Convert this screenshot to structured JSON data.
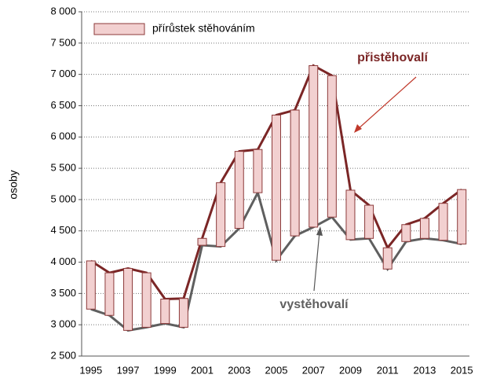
{
  "chart_data": {
    "type": "line",
    "y_label": "osoby",
    "bar_legend": "přírůstek stěhováním",
    "bar_color": "#f2d0d0",
    "categories": [
      "1995",
      null,
      "1997",
      null,
      "1999",
      null,
      "2001",
      null,
      "2003",
      null,
      "2005",
      null,
      "2007",
      null,
      "2009",
      null,
      "2011",
      null,
      "2013",
      null,
      "2015"
    ],
    "series": [
      {
        "name": "přistěhovalí",
        "color": "#7b2626",
        "values": [
          4020,
          3830,
          3900,
          3830,
          3410,
          3420,
          4380,
          5270,
          5770,
          5800,
          6350,
          6430,
          7140,
          6980,
          5150,
          4910,
          4230,
          4600,
          4700,
          4940,
          5160
        ]
      },
      {
        "name": "vystěhovalí",
        "color": "#5f5f5f",
        "values": [
          3250,
          3150,
          2910,
          2960,
          3020,
          2960,
          4270,
          4250,
          4540,
          5110,
          4030,
          4420,
          4560,
          4720,
          4360,
          4380,
          3890,
          4330,
          4380,
          4350,
          4290
        ]
      }
    ],
    "ylim": [
      2500,
      8000
    ],
    "yticks": [
      {
        "value": 2500,
        "label": "2 500"
      },
      {
        "value": 3000,
        "label": "3 000"
      },
      {
        "value": 3500,
        "label": "3 500"
      },
      {
        "value": 4000,
        "label": "4 000"
      },
      {
        "value": 4500,
        "label": "4 500"
      },
      {
        "value": 5000,
        "label": "5 000"
      },
      {
        "value": 5500,
        "label": "5 500"
      },
      {
        "value": 6000,
        "label": "6 000"
      },
      {
        "value": 6500,
        "label": "6 500"
      },
      {
        "value": 7000,
        "label": "7 000"
      },
      {
        "value": 7500,
        "label": "7 500"
      },
      {
        "value": 8000,
        "label": "8 000"
      }
    ],
    "grid": true
  }
}
